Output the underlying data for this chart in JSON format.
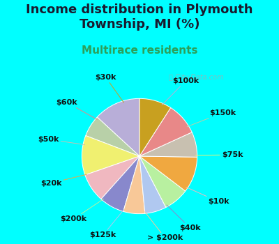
{
  "title": "Income distribution in Plymouth\nTownship, MI (%)",
  "subtitle": "Multirace residents",
  "watermark": "ⓘ City-Data.com",
  "background_color": "#00ffff",
  "chart_bg_left": "#c8ead8",
  "chart_bg_right": "#f0f8f4",
  "labels": [
    "$100k",
    "$150k",
    "$75k",
    "$10k",
    "$40k",
    "> $200k",
    "$125k",
    "$200k",
    "$20k",
    "$50k",
    "$60k",
    "$30k"
  ],
  "values": [
    13,
    6,
    11,
    8,
    7,
    6,
    6,
    7,
    10,
    7,
    9,
    9
  ],
  "colors": [
    "#b8aed8",
    "#b8d0a8",
    "#f0f070",
    "#f0b8c0",
    "#8888cc",
    "#f8c898",
    "#b0c8f0",
    "#b8f0a0",
    "#f0a840",
    "#c8c0b0",
    "#e88888",
    "#c8a020"
  ],
  "title_fontsize": 13,
  "subtitle_fontsize": 11,
  "label_fontsize": 8,
  "figsize": [
    4.0,
    3.5
  ],
  "dpi": 100
}
